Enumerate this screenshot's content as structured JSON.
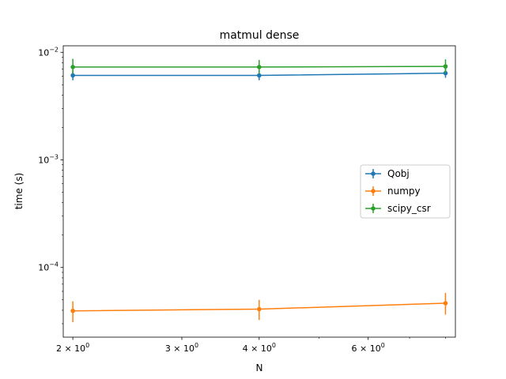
{
  "chart_data": {
    "type": "line",
    "title": "matmul dense",
    "xlabel": "N",
    "ylabel": "time (s)",
    "xscale": "log",
    "yscale": "log",
    "xlim": [
      1.93,
      8.3
    ],
    "ylim": [
      2.25e-05,
      0.0115
    ],
    "x": [
      2,
      4,
      8
    ],
    "x_major_ticks": [
      {
        "value": 2,
        "label": "2 × 10",
        "exp": "0"
      },
      {
        "value": 3,
        "label": "3 × 10",
        "exp": "0"
      },
      {
        "value": 4,
        "label": "4 × 10",
        "exp": "0"
      },
      {
        "value": 6,
        "label": "6 × 10",
        "exp": "0"
      }
    ],
    "x_minor_ticks": [
      5,
      7,
      8
    ],
    "y_major_ticks": [
      {
        "value": 0.0001,
        "label": "10",
        "exp": "−4"
      },
      {
        "value": 0.001,
        "label": "10",
        "exp": "−3"
      },
      {
        "value": 0.01,
        "label": "10",
        "exp": "−2"
      }
    ],
    "y_minor_ticks": [
      3e-05,
      4e-05,
      5e-05,
      6e-05,
      7e-05,
      8e-05,
      9e-05,
      0.0002,
      0.0003,
      0.0004,
      0.0005,
      0.0006,
      0.0007,
      0.0008,
      0.0009,
      0.002,
      0.003,
      0.004,
      0.005,
      0.006,
      0.007,
      0.008,
      0.009
    ],
    "series": [
      {
        "name": "Qobj",
        "color": "#1f77b4",
        "values": [
          0.0061,
          0.0061,
          0.0064
        ],
        "err_low": [
          0.0055,
          0.0055,
          0.0058
        ],
        "err_high": [
          0.0068,
          0.0068,
          0.0071
        ]
      },
      {
        "name": "numpy",
        "color": "#ff7f0e",
        "values": [
          3.95e-05,
          4.1e-05,
          4.65e-05
        ],
        "err_low": [
          3.1e-05,
          3.25e-05,
          3.65e-05
        ],
        "err_high": [
          4.85e-05,
          5e-05,
          5.8e-05
        ]
      },
      {
        "name": "scipy_csr",
        "color": "#2ca02c",
        "values": [
          0.0073,
          0.0073,
          0.0074
        ],
        "err_low": [
          0.0063,
          0.0063,
          0.0064
        ],
        "err_high": [
          0.0087,
          0.0085,
          0.0086
        ]
      }
    ],
    "legend_position": "center-right",
    "grid": false
  }
}
